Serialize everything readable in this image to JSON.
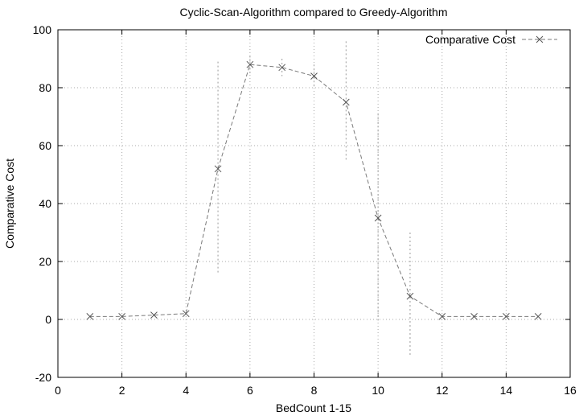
{
  "chart_data": {
    "type": "line",
    "title": "Cyclic-Scan-Algorithm compared to Greedy-Algorithm",
    "xlabel": "BedCount 1-15",
    "ylabel": "Comparative Cost",
    "xlim": [
      0,
      16
    ],
    "ylim": [
      -20,
      100
    ],
    "x_ticks": [
      0,
      2,
      4,
      6,
      8,
      10,
      12,
      14,
      16
    ],
    "y_ticks": [
      -20,
      0,
      20,
      40,
      60,
      80,
      100
    ],
    "grid": true,
    "legend_position": "top-right",
    "series": [
      {
        "name": "Comparative Cost",
        "color": "#777777",
        "x": [
          1,
          2,
          3,
          4,
          5,
          6,
          7,
          8,
          9,
          10,
          11,
          12,
          13,
          14,
          15
        ],
        "y": [
          1,
          1,
          1.5,
          2,
          52,
          88,
          87,
          84,
          75,
          35,
          8,
          1,
          1,
          1,
          1
        ],
        "error_low": [
          1,
          1,
          1.5,
          2,
          16,
          85,
          84,
          80,
          55,
          -1,
          -13,
          1,
          1,
          1,
          1
        ],
        "error_high": [
          1,
          1,
          1.5,
          2,
          89,
          91,
          90,
          88,
          96,
          71,
          30,
          1,
          1,
          1,
          1
        ]
      }
    ]
  }
}
